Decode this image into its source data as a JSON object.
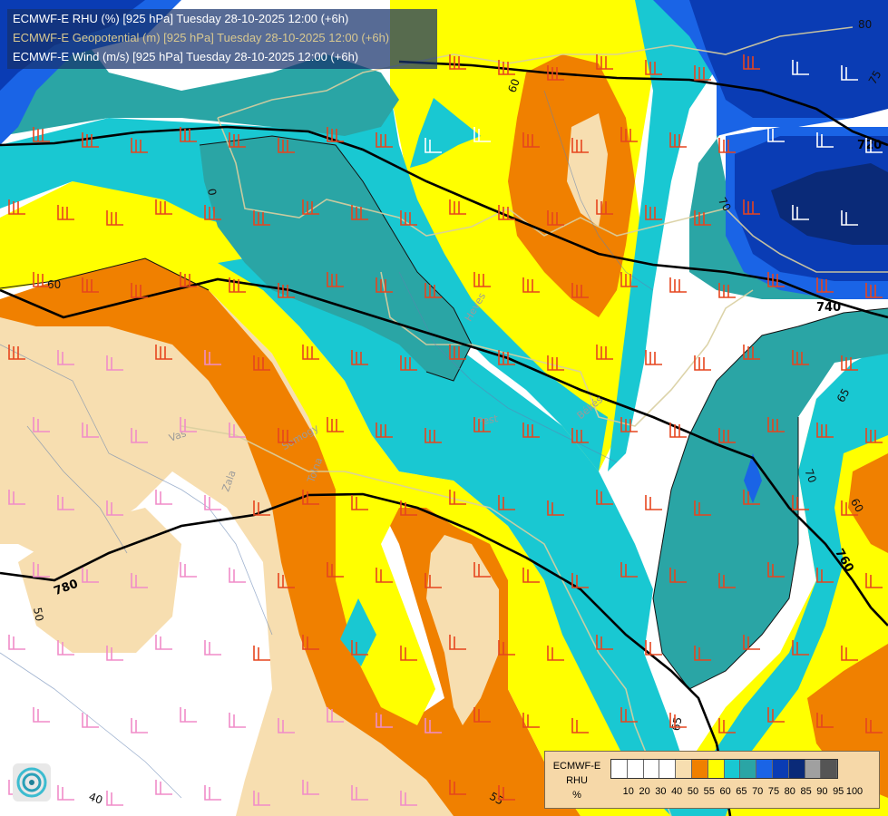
{
  "title_lines": [
    {
      "text": "ECMWF-E RHU (%) [925 hPa] Tuesday 28-10-2025 12:00 (+6h)",
      "color": "#ffffff"
    },
    {
      "text": "ECMWF-E Geopotential (m) [925 hPa] Tuesday 28-10-2025 12:00 (+6h)",
      "color": "#d8c890"
    },
    {
      "text": "ECMWF-E Wind (m/s) [925 hPa] Tuesday 28-10-2025 12:00 (+6h)",
      "color": "#ffffff"
    }
  ],
  "legend": {
    "title_lines": [
      "ECMWF-E",
      "RHU",
      "%"
    ],
    "bins": [
      {
        "label": "10",
        "color": "#ffffff"
      },
      {
        "label": "20",
        "color": "#ffffff"
      },
      {
        "label": "30",
        "color": "#ffffff"
      },
      {
        "label": "40",
        "color": "#ffffff"
      },
      {
        "label": "50",
        "color": "#f7deb0"
      },
      {
        "label": "55",
        "color": "#f08000"
      },
      {
        "label": "60",
        "color": "#ffff00"
      },
      {
        "label": "65",
        "color": "#19c8d2"
      },
      {
        "label": "70",
        "color": "#2aa5a5"
      },
      {
        "label": "75",
        "color": "#1a64e6"
      },
      {
        "label": "80",
        "color": "#0a3cb4"
      },
      {
        "label": "85",
        "color": "#0a2a78"
      },
      {
        "label": "90",
        "color": "#a0a0a0"
      },
      {
        "label": "95",
        "color": "#555555"
      },
      {
        "label": "100",
        "color": ""
      }
    ]
  },
  "height_contours": [
    {
      "label": "720"
    },
    {
      "label": "740"
    },
    {
      "label": "760"
    },
    {
      "label": "780"
    }
  ],
  "rhu_contour_labels": [
    "80",
    "75",
    "70",
    "60",
    "60",
    "65",
    "70",
    "60",
    "50",
    "55",
    "65",
    "40"
  ],
  "place_labels": [
    "Vas",
    "Zala",
    "Tolna",
    "Somogy",
    "Heves",
    "Pest",
    "Békés"
  ],
  "wind_barb_colors": {
    "strong": "#e6451e",
    "medium": "#e8501e",
    "weak": "#f08cc8",
    "white": "#ffffff"
  },
  "logo": {
    "icon": "ecmwf-spiral-icon"
  }
}
